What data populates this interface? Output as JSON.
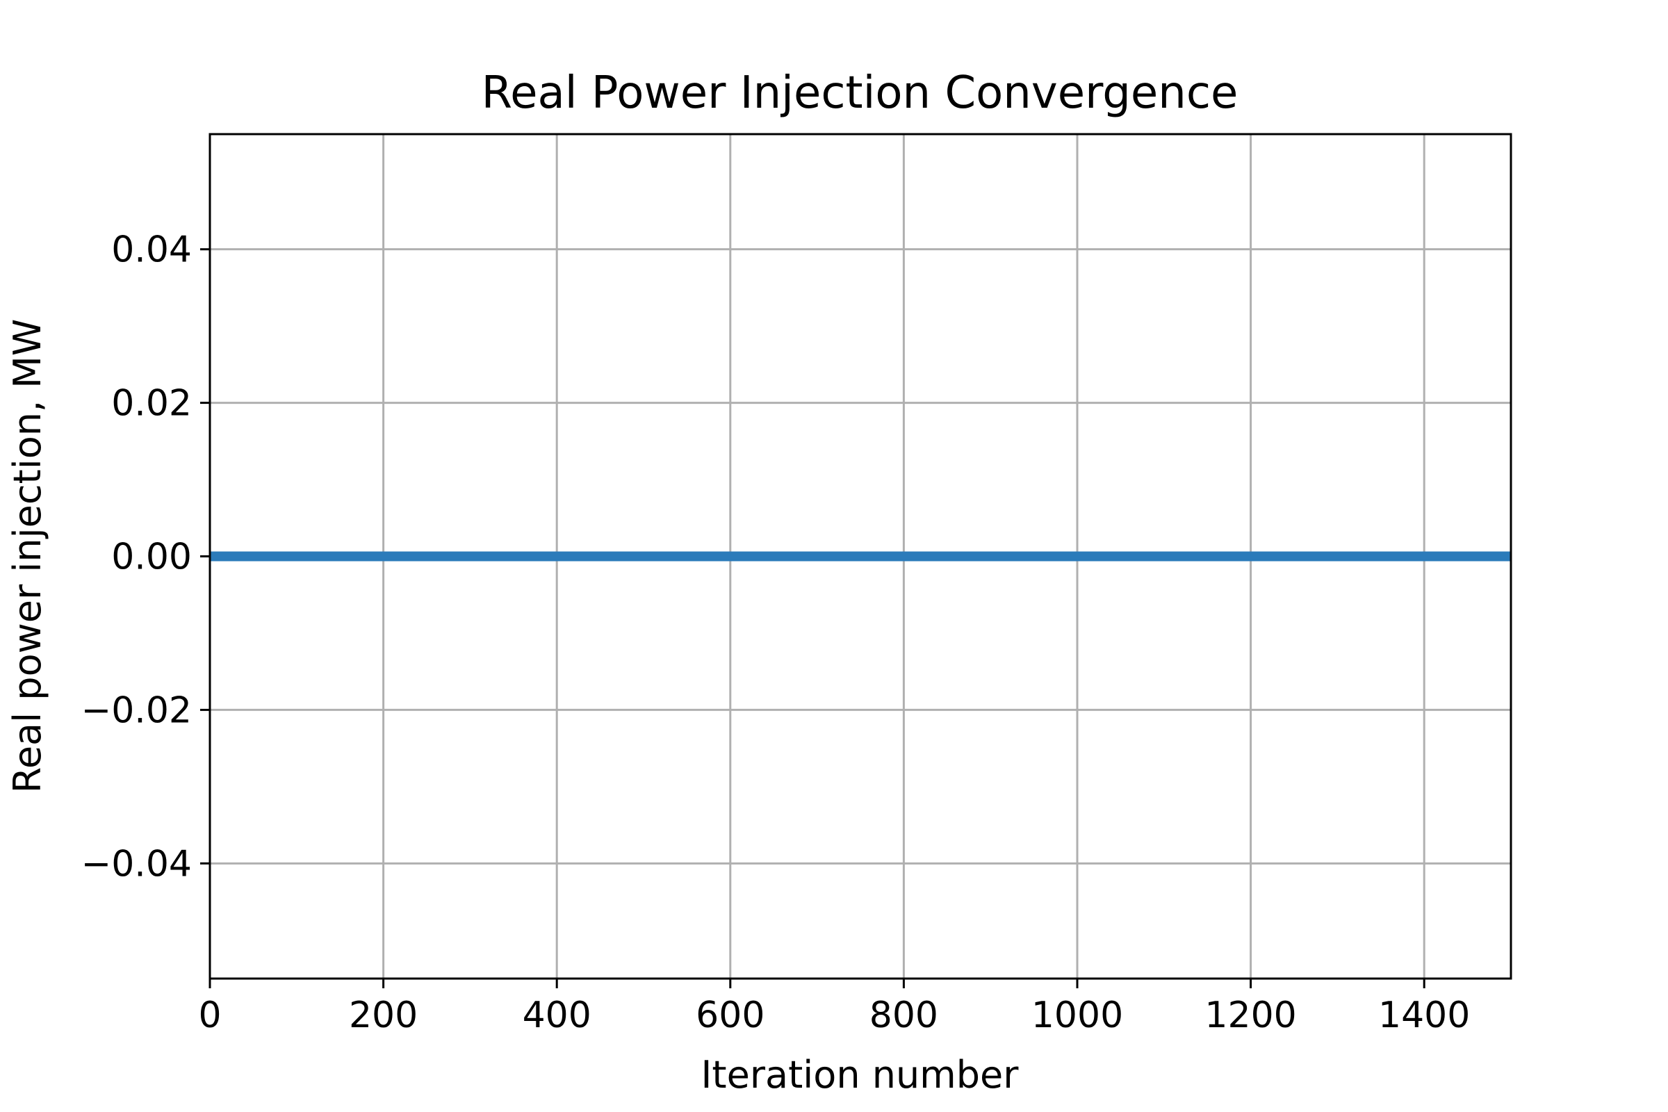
{
  "chart_data": {
    "type": "line",
    "title": "Real Power Injection Convergence",
    "xlabel": "Iteration number",
    "ylabel": "Real power injection, MW",
    "xlim": [
      0,
      1500
    ],
    "ylim": [
      -0.055,
      0.055
    ],
    "x_ticks": [
      0,
      200,
      400,
      600,
      800,
      1000,
      1200,
      1400
    ],
    "x_tick_labels": [
      "0",
      "200",
      "400",
      "600",
      "800",
      "1000",
      "1200",
      "1400"
    ],
    "y_ticks": [
      0.04,
      0.02,
      0.0,
      -0.02,
      -0.04
    ],
    "y_tick_labels": [
      "0.04",
      "0.02",
      "0.00",
      "−0.02",
      "−0.04"
    ],
    "grid": true,
    "series": [
      {
        "color": "#2b7bba",
        "x": [
          0,
          1500
        ],
        "y": [
          0.0,
          0.0
        ]
      }
    ]
  },
  "colors": {
    "grid": "#b0b0b0",
    "axes": "#000000",
    "background": "#ffffff"
  }
}
